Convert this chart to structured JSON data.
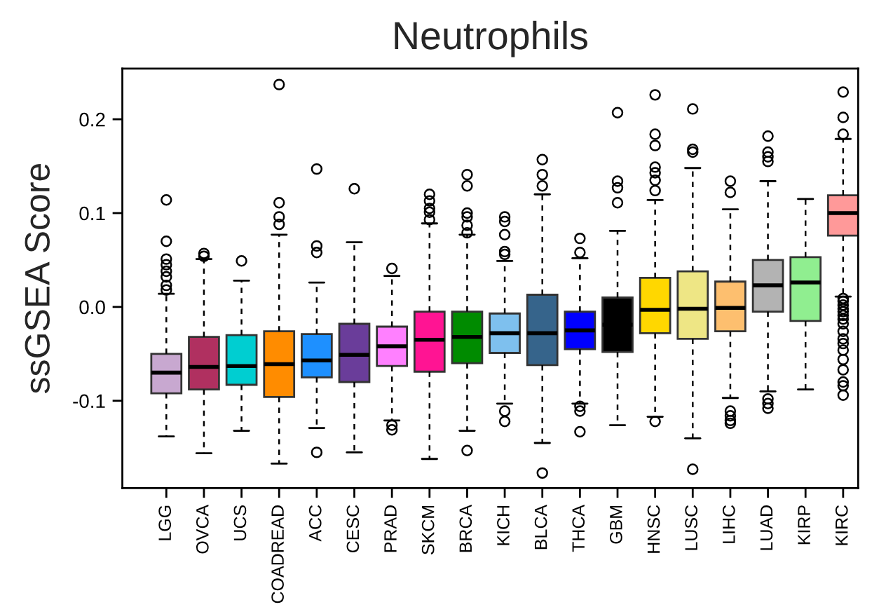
{
  "chart_data": {
    "type": "box",
    "title": "Neutrophils",
    "ylabel": "ssGSEA Score",
    "categories": [
      "LGG",
      "OVCA",
      "UCS",
      "COADREAD",
      "ACC",
      "CESC",
      "PRAD",
      "SKCM",
      "BRCA",
      "KICH",
      "BLCA",
      "THCA",
      "GBM",
      "HNSC",
      "LUSC",
      "LIHC",
      "LUAD",
      "KIRP",
      "KIRC"
    ],
    "colors": [
      "#c8a8d0",
      "#b03060",
      "#00ced1",
      "#ff8c00",
      "#1e90ff",
      "#6a3d9a",
      "#ff80ff",
      "#ff1493",
      "#008b00",
      "#7ec0ee",
      "#36648b",
      "#0000ff",
      "#000000",
      "#ffd700",
      "#eee685",
      "#fdbf6f",
      "#b3b3b3",
      "#90ee90",
      "#ff9999"
    ],
    "boxes": [
      {
        "low": -0.138,
        "q1": -0.092,
        "median": -0.07,
        "q3": -0.05,
        "high": 0.014,
        "outliers": [
          0.114,
          0.07,
          0.051,
          0.045,
          0.038,
          0.032,
          0.023,
          0.018
        ]
      },
      {
        "low": -0.156,
        "q1": -0.088,
        "median": -0.064,
        "q3": -0.032,
        "high": 0.051,
        "outliers": [
          0.057,
          0.054
        ]
      },
      {
        "low": -0.132,
        "q1": -0.083,
        "median": -0.063,
        "q3": -0.03,
        "high": 0.028,
        "outliers": [
          0.049
        ]
      },
      {
        "low": -0.167,
        "q1": -0.096,
        "median": -0.061,
        "q3": -0.026,
        "high": 0.077,
        "outliers": [
          0.237,
          0.111,
          0.096,
          0.088
        ]
      },
      {
        "low": -0.129,
        "q1": -0.075,
        "median": -0.057,
        "q3": -0.029,
        "high": 0.026,
        "outliers": [
          0.147,
          0.065,
          0.058,
          -0.155
        ]
      },
      {
        "low": -0.155,
        "q1": -0.08,
        "median": -0.051,
        "q3": -0.018,
        "high": 0.069,
        "outliers": [
          0.126
        ]
      },
      {
        "low": -0.121,
        "q1": -0.063,
        "median": -0.042,
        "q3": -0.021,
        "high": 0.033,
        "outliers": [
          0.041,
          -0.126,
          -0.131
        ]
      },
      {
        "low": -0.162,
        "q1": -0.069,
        "median": -0.035,
        "q3": -0.005,
        "high": 0.089,
        "outliers": [
          0.12,
          0.113,
          0.105,
          0.101,
          0.093
        ]
      },
      {
        "low": -0.132,
        "q1": -0.06,
        "median": -0.032,
        "q3": -0.005,
        "high": 0.077,
        "outliers": [
          0.141,
          0.129,
          0.1,
          0.096,
          0.087,
          0.079,
          -0.153
        ]
      },
      {
        "low": -0.103,
        "q1": -0.049,
        "median": -0.028,
        "q3": -0.007,
        "high": 0.049,
        "outliers": [
          0.096,
          0.091,
          0.077,
          0.059,
          0.056,
          -0.111,
          -0.122
        ]
      },
      {
        "low": -0.145,
        "q1": -0.062,
        "median": -0.028,
        "q3": 0.013,
        "high": 0.12,
        "outliers": [
          0.157,
          0.141,
          0.129,
          -0.177
        ]
      },
      {
        "low": -0.103,
        "q1": -0.045,
        "median": -0.025,
        "q3": -0.005,
        "high": 0.052,
        "outliers": [
          0.073,
          0.058,
          -0.106,
          -0.111,
          -0.133
        ]
      },
      {
        "low": -0.126,
        "q1": -0.048,
        "median": -0.019,
        "q3": 0.01,
        "high": 0.081,
        "outliers": [
          0.207,
          0.134,
          0.127,
          0.111
        ]
      },
      {
        "low": -0.117,
        "q1": -0.028,
        "median": -0.003,
        "q3": 0.031,
        "high": 0.114,
        "outliers": [
          0.226,
          0.184,
          0.172,
          0.149,
          0.143,
          0.135,
          0.124,
          -0.122
        ]
      },
      {
        "low": -0.14,
        "q1": -0.034,
        "median": -0.002,
        "q3": 0.038,
        "high": 0.148,
        "outliers": [
          0.211,
          0.168,
          0.165,
          -0.173
        ]
      },
      {
        "low": -0.097,
        "q1": -0.026,
        "median": -0.001,
        "q3": 0.027,
        "high": 0.104,
        "outliers": [
          0.134,
          0.122,
          -0.111,
          -0.116,
          -0.121,
          -0.124
        ]
      },
      {
        "low": -0.09,
        "q1": -0.005,
        "median": 0.023,
        "q3": 0.05,
        "high": 0.134,
        "outliers": [
          0.182,
          0.165,
          0.16,
          0.155,
          -0.098,
          -0.103,
          -0.108
        ]
      },
      {
        "low": -0.088,
        "q1": -0.015,
        "median": 0.026,
        "q3": 0.053,
        "high": 0.115
      },
      {
        "low": 0.011,
        "q1": 0.076,
        "median": 0.1,
        "q3": 0.119,
        "high": 0.179,
        "outliers": [
          0.229,
          0.202,
          0.184,
          0.009,
          0.006,
          0.002,
          -0.002,
          -0.005,
          -0.009,
          -0.013,
          -0.018,
          -0.026,
          -0.034,
          -0.039,
          -0.046,
          -0.056,
          -0.067,
          -0.08,
          -0.084,
          -0.094
        ]
      }
    ],
    "ylim": [
      -0.193,
      0.254
    ],
    "yticks": [
      {
        "value": -0.1,
        "label": "-0.1"
      },
      {
        "value": 0.0,
        "label": "0.0"
      },
      {
        "value": 0.1,
        "label": "0.1"
      },
      {
        "value": 0.2,
        "label": "0.2"
      }
    ],
    "grid": false,
    "legend": false
  }
}
